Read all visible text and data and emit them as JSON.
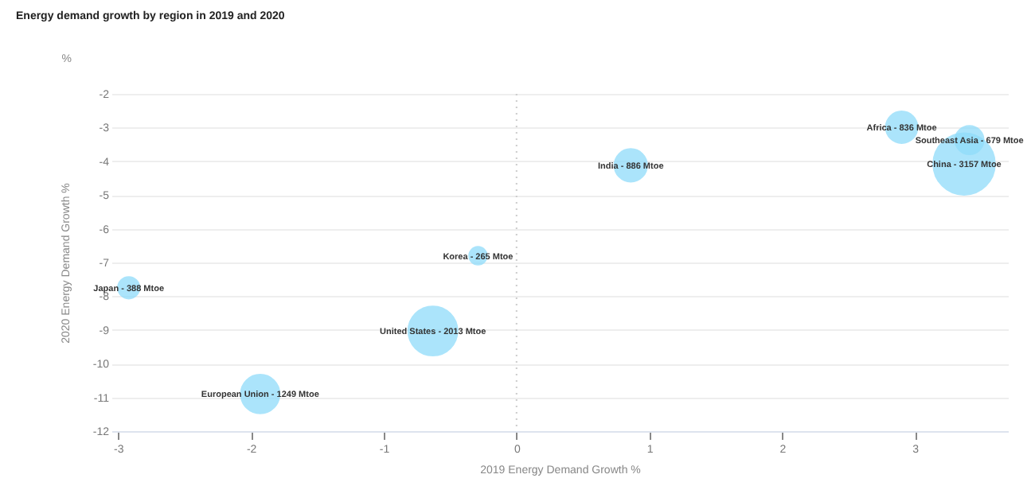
{
  "chart_data": {
    "type": "bubble",
    "title": "Energy demand growth by region in 2019 and 2020",
    "xlabel": "2019 Energy Demand Growth %",
    "ylabel": "2020 Energy Demand Growth %",
    "x": [
      -2.92,
      -1.93,
      -0.63,
      -0.29,
      0.86,
      2.9,
      3.41,
      3.37
    ],
    "values": [
      -7.75,
      -10.9,
      -9.03,
      -6.8,
      -4.12,
      -2.99,
      -3.37,
      -4.08
    ],
    "sizes": [
      0.123,
      0.396,
      0.638,
      0.084,
      0.281,
      0.265,
      0.215,
      1
    ],
    "color": "#8fdcfa",
    "xlim": [
      -3.05,
      3.7
    ],
    "xticks": [
      -3,
      -2,
      -1,
      0,
      1,
      2,
      3
    ],
    "ylim": [
      -12,
      -2
    ],
    "yticks": [
      -12,
      -11,
      -10,
      -9,
      -8,
      -7,
      -6,
      -5,
      -4,
      -3,
      -2
    ],
    "grid": "y",
    "legend": false,
    "ref_lines": [
      {
        "axis": "x",
        "value": 0,
        "line_style": "dotted",
        "color": "#cccccc"
      }
    ],
    "annotations": [
      "%",
      {
        "text": "Japan - 388 Mtoe",
        "x": -2.92,
        "y": -7.75
      },
      {
        "text": "European Union - 1249 Mtoe",
        "x": -1.93,
        "y": -10.9
      },
      {
        "text": "United States - 2013 Mtoe",
        "x": -0.63,
        "y": -9.03
      },
      {
        "text": "Korea - 265 Mtoe",
        "x": -0.29,
        "y": -6.8
      },
      {
        "text": "India - 886 Mtoe",
        "x": 0.86,
        "y": -4.12
      },
      {
        "text": "Africa - 836 Mtoe",
        "x": 2.9,
        "y": -2.99
      },
      {
        "text": "Southeast Asia - 679 Mtoe",
        "x": 3.41,
        "y": -3.37
      },
      {
        "text": "China - 3157 Mtoe",
        "x": 3.37,
        "y": -4.08
      }
    ]
  }
}
